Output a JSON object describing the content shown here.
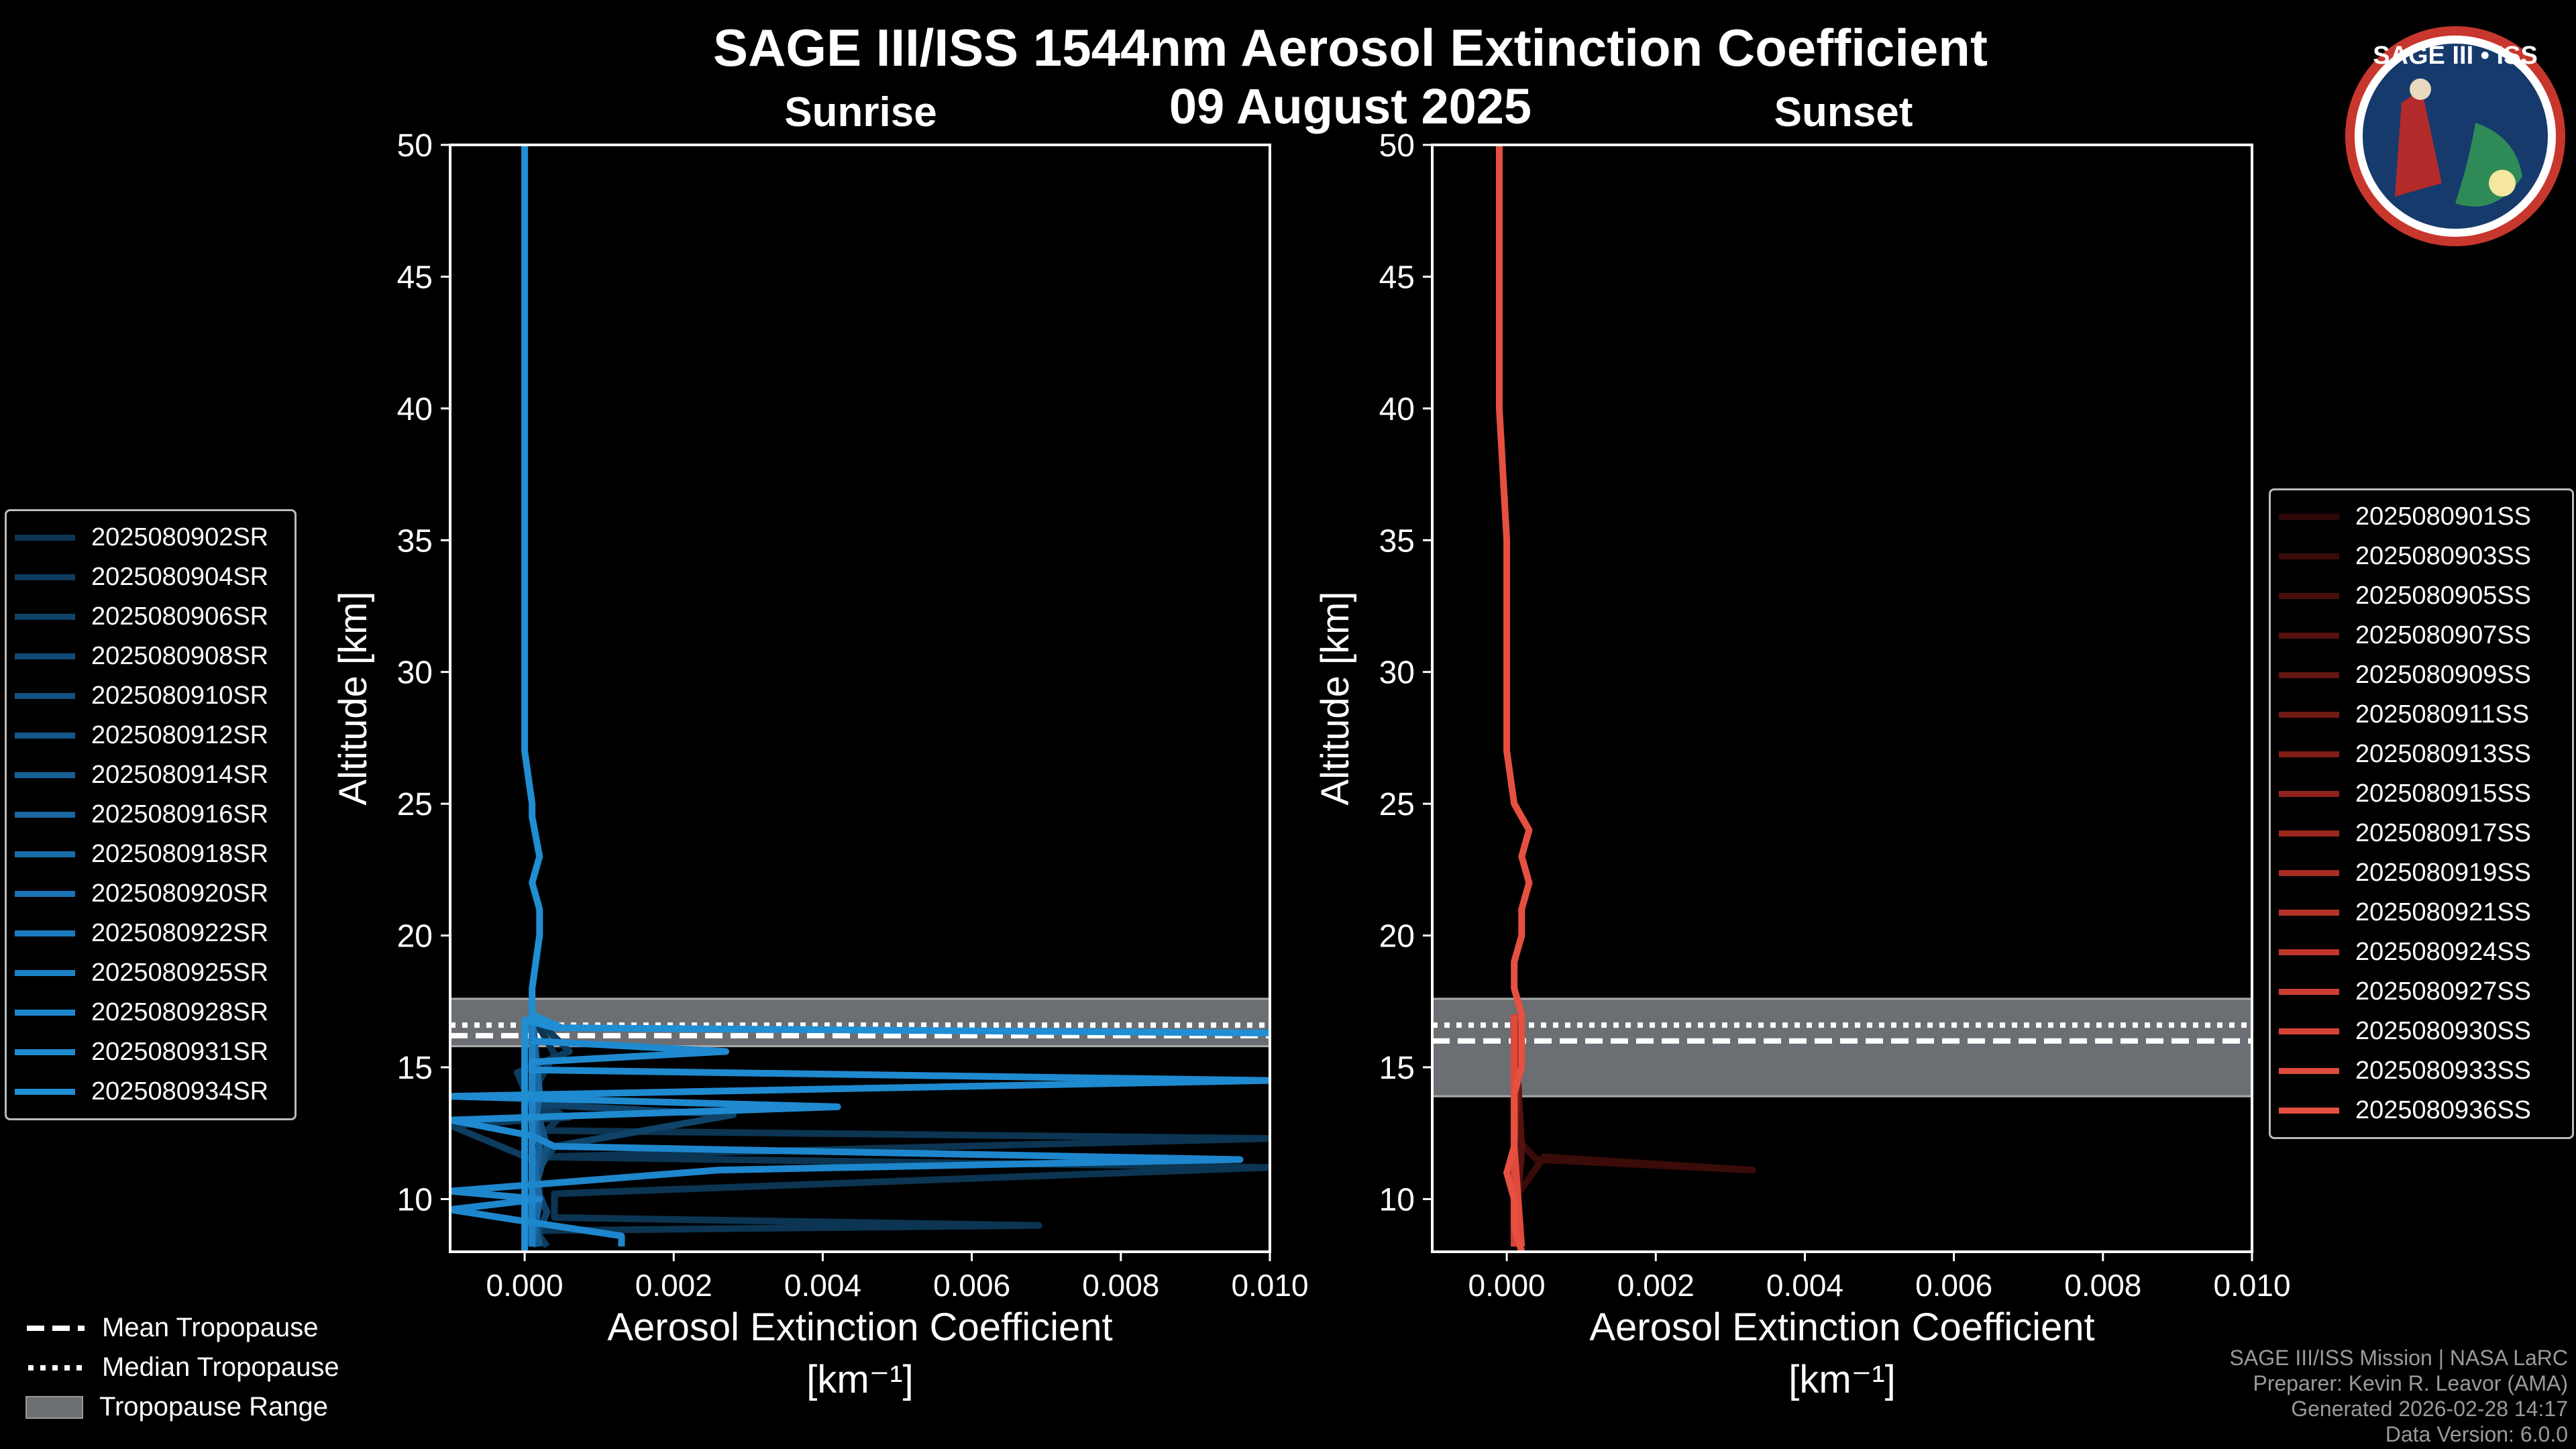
{
  "title": "SAGE III/ISS 1544nm Aerosol Extinction Coefficient",
  "date": "09 August 2025",
  "logo_text": "SAGE III • ISS",
  "credits": [
    "SAGE III/ISS Mission | NASA LaRC",
    "Preparer: Kevin R. Leavor (AMA)",
    "Generated 2026-02-28 14:17",
    "Data Version: 6.0.0"
  ],
  "tropopause_legend": [
    "Mean Tropopause",
    "Median Tropopause",
    "Tropopause Range"
  ],
  "chart_data": [
    {
      "type": "line",
      "title": "Sunrise",
      "xlabel": "Aerosol Extinction Coefficient",
      "xlabel_units": "[km⁻¹]",
      "ylabel": "Altitude [km]",
      "xlim": [
        -0.001,
        0.01
      ],
      "ylim": [
        8,
        50
      ],
      "xticks": [
        "0.000",
        "0.002",
        "0.004",
        "0.006",
        "0.008",
        "0.010"
      ],
      "xtick_values": [
        0,
        0.002,
        0.004,
        0.006,
        0.008,
        0.01
      ],
      "yticks": [
        10,
        15,
        20,
        25,
        30,
        35,
        40,
        45,
        50
      ],
      "tropopause": {
        "mean": 16.2,
        "median": 16.6,
        "range": [
          15.8,
          17.6
        ]
      },
      "series": [
        {
          "name": "2025080902SR",
          "color": "#0b3552",
          "points": [
            [
              8.2,
              0.0001
            ],
            [
              8.8,
              0.0001
            ],
            [
              9.0,
              0.0069
            ],
            [
              9.3,
              0.0004
            ],
            [
              10.2,
              0.0004
            ],
            [
              11.2,
              0.01
            ],
            [
              11.6,
              0.0002
            ],
            [
              12.3,
              0.01
            ],
            [
              12.6,
              0.0003
            ],
            [
              13.2,
              0.0005
            ],
            [
              14,
              0.0001
            ],
            [
              15.5,
              0.0004
            ],
            [
              17,
              0.0001
            ]
          ]
        },
        {
          "name": "2025080904SR",
          "color": "#0d3c5e",
          "points": [
            [
              8.2,
              0.0003
            ],
            [
              9,
              0.0001
            ],
            [
              10.3,
              0.0002
            ],
            [
              11.5,
              0.0001
            ],
            [
              12.8,
              -0.001
            ],
            [
              13.1,
              0.0006
            ],
            [
              13.5,
              0.0001
            ],
            [
              14.8,
              -0.0001
            ],
            [
              15.6,
              0.0006
            ],
            [
              17,
              0.0001
            ]
          ]
        },
        {
          "name": "2025080906SR",
          "color": "#0f4369",
          "points": [
            [
              8.2,
              0.0001
            ],
            [
              9.5,
              0.0003
            ],
            [
              10.8,
              0.0001
            ],
            [
              12,
              0.0004
            ],
            [
              13.2,
              0.0028
            ],
            [
              13.6,
              0.0001
            ],
            [
              15,
              0.0001
            ],
            [
              17,
              0.0001
            ]
          ]
        },
        {
          "name": "2025080908SR",
          "color": "#114a74",
          "points": [
            [
              8.2,
              0.0001
            ],
            [
              10,
              0.0002
            ],
            [
              12,
              0.0001
            ],
            [
              14,
              0.0002
            ],
            [
              17,
              0.0001
            ]
          ]
        },
        {
          "name": "2025080910SR",
          "color": "#13517f",
          "points": [
            [
              8.2,
              0.0
            ],
            [
              10,
              0.0001
            ],
            [
              12,
              0.0003
            ],
            [
              14,
              0.0001
            ],
            [
              17,
              0.0001
            ]
          ]
        },
        {
          "name": "2025080912SR",
          "color": "#15588a",
          "points": [
            [
              8.2,
              0.0002
            ],
            [
              10,
              0.0001
            ],
            [
              12,
              0.0001
            ],
            [
              14,
              0.0001
            ],
            [
              17,
              0.0001
            ]
          ]
        },
        {
          "name": "2025080914SR",
          "color": "#175f95",
          "points": [
            [
              8.2,
              0.0001
            ],
            [
              10,
              0.0001
            ],
            [
              12,
              0.0002
            ],
            [
              14,
              0.0001
            ],
            [
              17,
              0.0001
            ]
          ]
        },
        {
          "name": "2025080916SR",
          "color": "#1966a0",
          "points": [
            [
              8.2,
              0.0001
            ],
            [
              10,
              0.0002
            ],
            [
              12,
              0.0001
            ],
            [
              14,
              0.0002
            ],
            [
              17,
              0.0001
            ]
          ]
        },
        {
          "name": "2025080918SR",
          "color": "#1a6dab",
          "points": [
            [
              8.2,
              0.0001
            ],
            [
              10,
              0.0001
            ],
            [
              12,
              0.0001
            ],
            [
              14,
              0.0001
            ],
            [
              17,
              0.0001
            ]
          ]
        },
        {
          "name": "2025080920SR",
          "color": "#1b74b5",
          "points": [
            [
              8.2,
              0.0001
            ],
            [
              10,
              0.0001
            ],
            [
              12,
              0.0001
            ],
            [
              14,
              0.0001
            ],
            [
              17,
              0.0001
            ]
          ]
        },
        {
          "name": "2025080922SR",
          "color": "#1c7bbe",
          "points": [
            [
              8.2,
              0.0001
            ],
            [
              10,
              0.0001
            ],
            [
              12,
              0.0001
            ],
            [
              14,
              0.0001
            ],
            [
              17,
              0.0001
            ]
          ]
        },
        {
          "name": "2025080925SR",
          "color": "#1d81c6",
          "points": [
            [
              8.2,
              0.0001
            ],
            [
              10,
              0.0001
            ],
            [
              12,
              0.0001
            ],
            [
              14,
              0.0001
            ],
            [
              17,
              0.0001
            ]
          ]
        },
        {
          "name": "2025080928SR",
          "color": "#1e86cc",
          "points": [
            [
              8.2,
              0.0013
            ],
            [
              8.6,
              0.0013
            ],
            [
              9.2,
              -0.0001
            ],
            [
              9.6,
              -0.001
            ],
            [
              10.0,
              0.0002
            ],
            [
              10.3,
              -0.001
            ],
            [
              11.1,
              0.0026
            ],
            [
              11.5,
              0.0096
            ],
            [
              12.0,
              0.0004
            ],
            [
              12.4,
              0.0001
            ]
          ]
        },
        {
          "name": "2025080931SR",
          "color": "#1f8acf",
          "points": [
            [
              12.4,
              0.0001
            ],
            [
              13.0,
              -0.001
            ],
            [
              13.5,
              0.0042
            ],
            [
              13.9,
              -0.001
            ],
            [
              14.5,
              0.01
            ],
            [
              14.9,
              0.0001
            ],
            [
              15.2,
              0.0001
            ],
            [
              15.6,
              0.0027
            ],
            [
              16.0,
              0.0001
            ]
          ]
        },
        {
          "name": "2025080934SR",
          "color": "#208ed3",
          "points": [
            [
              8.0,
              0.0
            ],
            [
              10,
              0.0
            ],
            [
              12,
              0.0
            ],
            [
              14,
              0.0
            ],
            [
              16,
              0.0
            ],
            [
              16.8,
              0.0
            ],
            [
              16.5,
              0.0004
            ],
            [
              16.3,
              0.01
            ],
            [
              16.5,
              0.0005
            ],
            [
              17.0,
              0.0001
            ],
            [
              18,
              0.0001
            ],
            [
              20,
              0.0002
            ],
            [
              21,
              0.0002
            ],
            [
              22,
              0.0001
            ],
            [
              23,
              0.0002
            ],
            [
              24.5,
              0.0001
            ],
            [
              25,
              0.0001
            ],
            [
              27,
              0.0
            ],
            [
              30,
              0.0
            ],
            [
              35,
              0.0
            ],
            [
              40,
              0.0
            ],
            [
              43,
              0.0
            ],
            [
              45,
              0.0
            ],
            [
              50,
              0.0
            ]
          ]
        }
      ]
    },
    {
      "type": "line",
      "title": "Sunset",
      "xlabel": "Aerosol Extinction Coefficient",
      "xlabel_units": "[km⁻¹]",
      "ylabel": "Altitude [km]",
      "xlim": [
        -0.001,
        0.01
      ],
      "ylim": [
        8,
        50
      ],
      "xticks": [
        "0.000",
        "0.002",
        "0.004",
        "0.006",
        "0.008",
        "0.010"
      ],
      "xtick_values": [
        0,
        0.002,
        0.004,
        0.006,
        0.008,
        0.01
      ],
      "yticks": [
        10,
        15,
        20,
        25,
        30,
        35,
        40,
        45,
        50
      ],
      "tropopause": {
        "mean": 16.0,
        "median": 16.6,
        "range": [
          13.9,
          17.6
        ]
      },
      "series": [
        {
          "name": "2025080901SS",
          "color": "#2e0807",
          "points": [
            [
              8.2,
              0.0001
            ],
            [
              10,
              0.0001
            ],
            [
              11.5,
              0.0002
            ],
            [
              12,
              0.0001
            ],
            [
              14,
              0.0001
            ],
            [
              17,
              0.0001
            ]
          ]
        },
        {
          "name": "2025080903SS",
          "color": "#3a0b09",
          "points": [
            [
              8.2,
              0.0002
            ],
            [
              10,
              0.0001
            ],
            [
              11.6,
              0.0005
            ],
            [
              11.1,
              0.0033
            ],
            [
              11.5,
              0.0004
            ],
            [
              12.1,
              0.0002
            ],
            [
              14,
              0.0001
            ],
            [
              17,
              0.0001
            ]
          ]
        },
        {
          "name": "2025080905SS",
          "color": "#470e0b",
          "points": [
            [
              8.2,
              0.0001
            ],
            [
              12,
              0.0001
            ],
            [
              17,
              0.0001
            ]
          ]
        },
        {
          "name": "2025080907SS",
          "color": "#55120e",
          "points": [
            [
              8.2,
              0.0001
            ],
            [
              12,
              0.0002
            ],
            [
              17,
              0.0001
            ]
          ]
        },
        {
          "name": "2025080909SS",
          "color": "#631611",
          "points": [
            [
              8.2,
              0.0001
            ],
            [
              12,
              0.0001
            ],
            [
              17,
              0.0001
            ]
          ]
        },
        {
          "name": "2025080911SS",
          "color": "#711a14",
          "points": [
            [
              8.2,
              0.0002
            ],
            [
              12,
              0.0001
            ],
            [
              17,
              0.0002
            ]
          ]
        },
        {
          "name": "2025080913SS",
          "color": "#7f1e17",
          "points": [
            [
              8.2,
              0.0001
            ],
            [
              12,
              0.0001
            ],
            [
              17,
              0.0001
            ]
          ]
        },
        {
          "name": "2025080915SS",
          "color": "#8d231b",
          "points": [
            [
              8.2,
              0.0001
            ],
            [
              12,
              0.0001
            ],
            [
              17,
              0.0001
            ]
          ]
        },
        {
          "name": "2025080917SS",
          "color": "#9b281f",
          "points": [
            [
              8.2,
              0.0001
            ],
            [
              12,
              0.0001
            ],
            [
              17,
              0.0001
            ]
          ]
        },
        {
          "name": "2025080919SS",
          "color": "#a82d23",
          "points": [
            [
              8.2,
              0.0001
            ],
            [
              12,
              0.0001
            ],
            [
              17,
              0.0001
            ]
          ]
        },
        {
          "name": "2025080921SS",
          "color": "#b43228",
          "points": [
            [
              8.2,
              0.0001
            ],
            [
              12,
              0.0001
            ],
            [
              17,
              0.0001
            ]
          ]
        },
        {
          "name": "2025080924SS",
          "color": "#c0382d",
          "points": [
            [
              8.2,
              0.0001
            ],
            [
              12,
              0.0001
            ],
            [
              17,
              0.0001
            ]
          ]
        },
        {
          "name": "2025080927SS",
          "color": "#cc3e32",
          "points": [
            [
              8.2,
              0.0001
            ],
            [
              12,
              0.0001
            ],
            [
              17,
              0.0001
            ]
          ]
        },
        {
          "name": "2025080930SS",
          "color": "#d64437",
          "points": [
            [
              8.2,
              0.0001
            ],
            [
              12,
              0.0001
            ],
            [
              17,
              0.0001
            ]
          ]
        },
        {
          "name": "2025080933SS",
          "color": "#df4a3c",
          "points": [
            [
              8.2,
              0.0002
            ],
            [
              12,
              0.0001
            ],
            [
              17,
              0.0001
            ]
          ]
        },
        {
          "name": "2025080936SS",
          "color": "#e65040",
          "points": [
            [
              8.0,
              0.0002
            ],
            [
              9,
              0.0001
            ],
            [
              10,
              0.0001
            ],
            [
              11,
              0.0
            ],
            [
              12,
              0.0001
            ],
            [
              13,
              0.0001
            ],
            [
              14,
              0.0001
            ],
            [
              15,
              0.0002
            ],
            [
              16,
              0.0002
            ],
            [
              17,
              0.0002
            ],
            [
              18,
              0.0001
            ],
            [
              19,
              0.0001
            ],
            [
              20,
              0.0002
            ],
            [
              21,
              0.0002
            ],
            [
              22,
              0.0003
            ],
            [
              23,
              0.0002
            ],
            [
              24,
              0.0003
            ],
            [
              25,
              0.0001
            ],
            [
              27,
              0.0
            ],
            [
              30,
              0.0
            ],
            [
              35,
              0.0
            ],
            [
              40,
              -0.0001
            ],
            [
              45,
              -0.0001
            ],
            [
              50,
              -0.0001
            ]
          ]
        }
      ]
    }
  ]
}
